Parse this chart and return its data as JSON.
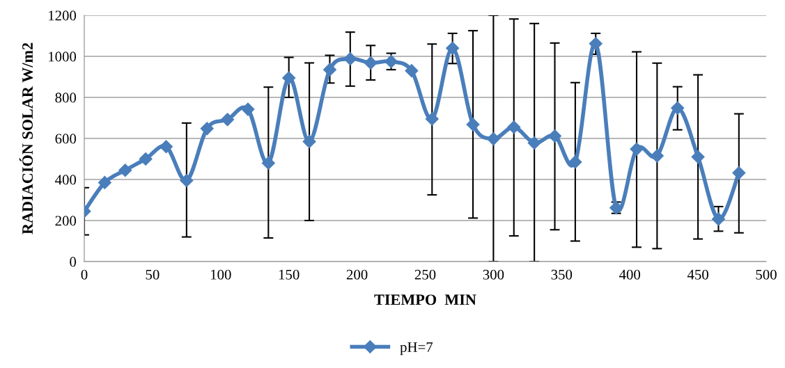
{
  "chart_data": {
    "type": "line",
    "xlabel": "TIEMPO  MIN",
    "ylabel": "RADIACIÓN SOLAR W/m2",
    "x": [
      0,
      15,
      30,
      45,
      60,
      75,
      90,
      105,
      120,
      135,
      150,
      165,
      180,
      195,
      210,
      225,
      240,
      255,
      270,
      285,
      300,
      315,
      330,
      345,
      360,
      375,
      390,
      405,
      420,
      435,
      450,
      465,
      480
    ],
    "series": [
      {
        "name": "pH=7",
        "color": "#4a7ebb",
        "values": [
          245,
          385,
          445,
          500,
          560,
          395,
          648,
          692,
          742,
          480,
          895,
          585,
          935,
          988,
          968,
          975,
          930,
          695,
          1040,
          668,
          598,
          655,
          578,
          612,
          485,
          1062,
          262,
          548,
          515,
          748,
          510,
          207,
          432
        ],
        "errors": [
          [
            130,
            360
          ],
          null,
          null,
          null,
          null,
          [
            120,
            675
          ],
          null,
          null,
          null,
          [
            115,
            850
          ],
          [
            800,
            995
          ],
          [
            200,
            968
          ],
          [
            870,
            1005
          ],
          [
            855,
            1118
          ],
          [
            885,
            1053
          ],
          [
            935,
            1015
          ],
          null,
          [
            325,
            1060
          ],
          [
            965,
            1112
          ],
          [
            212,
            1125
          ],
          [
            0,
            1200
          ],
          [
            125,
            1182
          ],
          [
            0,
            1160
          ],
          [
            155,
            1065
          ],
          [
            100,
            872
          ],
          [
            1010,
            1112
          ],
          [
            235,
            290
          ],
          [
            70,
            1022
          ],
          [
            63,
            967
          ],
          [
            642,
            852
          ],
          [
            110,
            910
          ],
          [
            148,
            268
          ],
          [
            140,
            720
          ]
        ]
      }
    ],
    "xlim": [
      0,
      500
    ],
    "xticks": [
      0,
      50,
      100,
      150,
      200,
      250,
      300,
      350,
      400,
      450,
      500
    ],
    "ylim": [
      0,
      1200
    ],
    "yticks": [
      0,
      200,
      400,
      600,
      800,
      1000,
      1200
    ],
    "grid": "y",
    "legend": "bottom",
    "marker": "diamond",
    "line_style": "solid"
  }
}
